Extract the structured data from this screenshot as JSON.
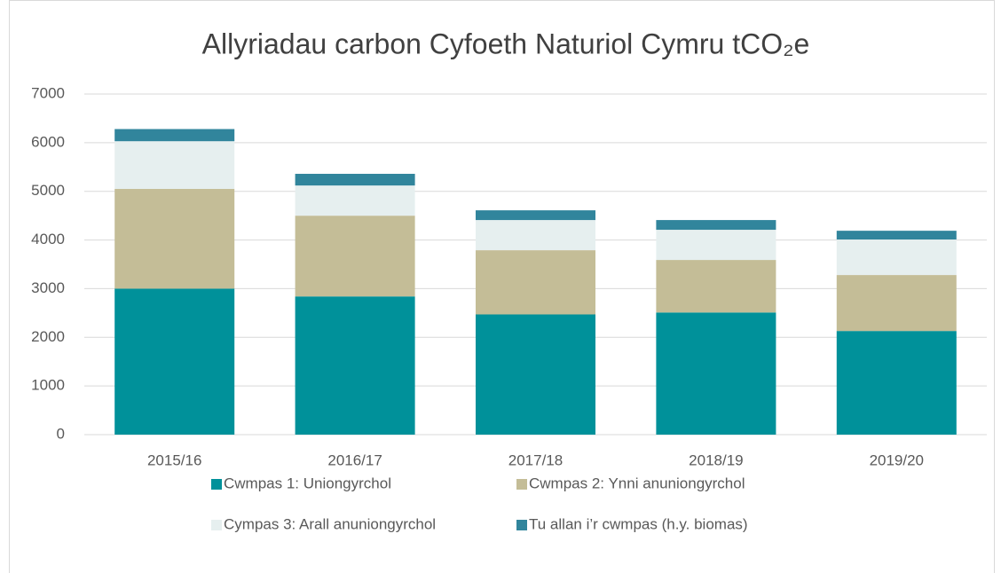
{
  "chart_data": {
    "type": "stacked_bar",
    "title": "Allyriadau carbon Cyfoeth Naturiol Cymru tCO₂e",
    "categories": [
      "2015/16",
      "2016/17",
      "2017/18",
      "2018/19",
      "2019/20"
    ],
    "series": [
      {
        "name": "Cwmpas 1: Uniongyrchol",
        "color": "#00919a",
        "values": [
          3000,
          2840,
          2470,
          2510,
          2130
        ]
      },
      {
        "name": "Cwmpas 2: Ynni anuniongyrchol",
        "color": "#c4bd97",
        "values": [
          2050,
          1660,
          1320,
          1080,
          1150
        ]
      },
      {
        "name": "Cympas 3: Arall anuniongyrchol",
        "color": "#e6efef",
        "values": [
          980,
          620,
          620,
          620,
          730
        ]
      },
      {
        "name": "Tu allan i’r cwmpas (h.y. biomas)",
        "color": "#31859c",
        "values": [
          250,
          240,
          200,
          200,
          180
        ]
      }
    ],
    "ylim": [
      0,
      7000
    ],
    "yticks": [
      0,
      1000,
      2000,
      3000,
      4000,
      5000,
      6000,
      7000
    ],
    "grid": true
  }
}
